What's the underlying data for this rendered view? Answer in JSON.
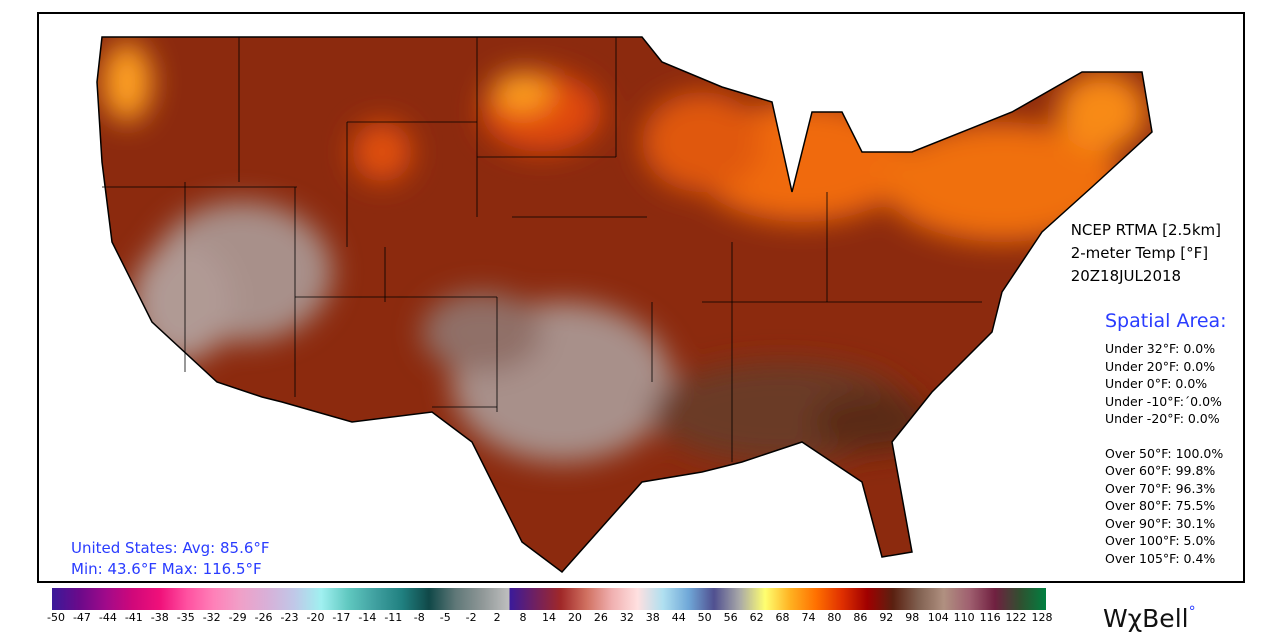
{
  "header": {
    "model": "NCEP RTMA [2.5km]",
    "variable": "2-meter Temp [°F]",
    "valid_time": "20Z18JUL2018"
  },
  "spatial_area": {
    "title": "Spatial Area:",
    "under": [
      "Under 32°F: 0.0%",
      "Under 20°F: 0.0%",
      "Under 0°F: 0.0%",
      "Under -10°F:´0.0%",
      "Under -20°F: 0.0%"
    ],
    "over": [
      "Over 50°F: 100.0%",
      "Over 60°F: 99.8%",
      "Over 70°F: 96.3%",
      "Over 80°F: 75.5%",
      "Over 90°F: 30.1%",
      "Over 100°F: 5.0%",
      "Over 105°F: 0.4%"
    ]
  },
  "summary": {
    "line1": "United States: Avg:  85.6°F",
    "line2": "Min:  43.6°F Max: 116.5°F"
  },
  "colorbar": {
    "ticks": [
      "-50",
      "-47",
      "-44",
      "-41",
      "-38",
      "-35",
      "-32",
      "-29",
      "-26",
      "-23",
      "-20",
      "-17",
      "-14",
      "-11",
      "-8",
      "-5",
      "-2",
      "2",
      "8",
      "14",
      "20",
      "26",
      "32",
      "38",
      "44",
      "50",
      "56",
      "62",
      "68",
      "74",
      "80",
      "86",
      "92",
      "98",
      "104",
      "110",
      "116",
      "122",
      "128"
    ],
    "colors": [
      "#3a1a9a",
      "#6a0a8a",
      "#a00a8a",
      "#d0087a",
      "#f0107a",
      "#ff50a0",
      "#ff80b8",
      "#f0a0c8",
      "#d8b0d8",
      "#c0c8e8",
      "#a0f0f0",
      "#60c8c0",
      "#40a0a0",
      "#208080",
      "#104848",
      "#607878",
      "#909898",
      "#c0c0c0",
      "#3a1a9a",
      "#702060",
      "#a02828",
      "#d07060",
      "#f0b0b0",
      "#ffe0e0",
      "#b0e0f0",
      "#70a8d8",
      "#505090",
      "#a8a8a8",
      "#ffff70",
      "#ffb020",
      "#ff7000",
      "#e03000",
      "#a00000",
      "#5a2010",
      "#806050",
      "#b09080",
      "#a06070",
      "#702040",
      "#305030",
      "#008040"
    ]
  },
  "map_colors": {
    "land_base": "#8c2a0e",
    "hot_orange": "#f06a10",
    "hot_yellow": "#ffb020",
    "desert_pink": "#a8908a",
    "outline": "#000000"
  },
  "logo": {
    "text": "WχBell",
    "dot": "°"
  }
}
